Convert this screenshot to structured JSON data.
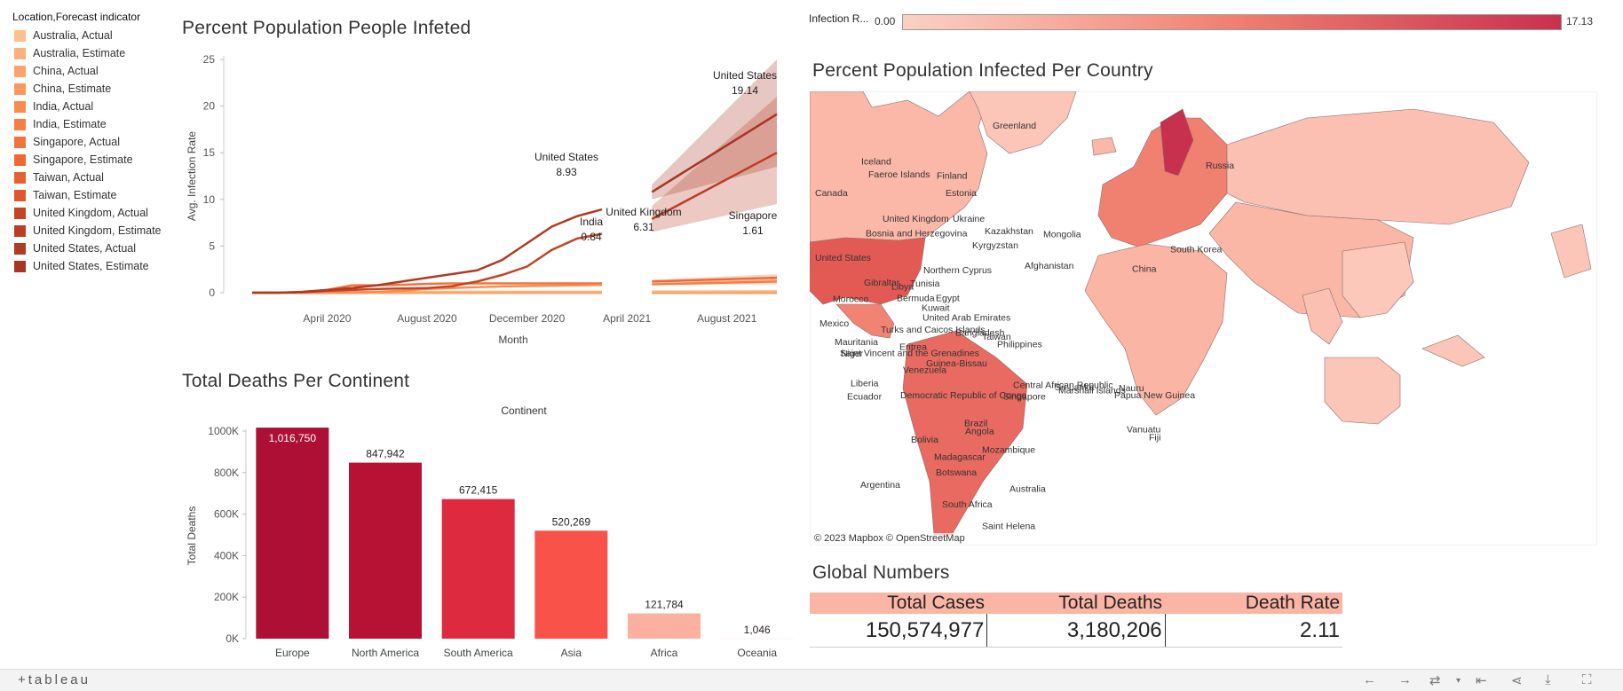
{
  "legend": {
    "title": "Location,Forecast indicator",
    "items": [
      {
        "label": "Australia, Actual",
        "color": "#fdbf8c"
      },
      {
        "label": "Australia, Estimate",
        "color": "#fcb07a"
      },
      {
        "label": "China, Actual",
        "color": "#fba36a"
      },
      {
        "label": "China, Estimate",
        "color": "#fa985c"
      },
      {
        "label": "India, Actual",
        "color": "#f98b4c"
      },
      {
        "label": "India, Estimate",
        "color": "#f57f43"
      },
      {
        "label": "Singapore, Actual",
        "color": "#f2733b"
      },
      {
        "label": "Singapore, Estimate",
        "color": "#ee6834"
      },
      {
        "label": "Taiwan, Actual",
        "color": "#e85f30"
      },
      {
        "label": "Taiwan, Estimate",
        "color": "#e1572d"
      },
      {
        "label": "United Kingdom, Actual",
        "color": "#c44425"
      },
      {
        "label": "United Kingdom, Estimate",
        "color": "#bb3e24"
      },
      {
        "label": "United States, Actual",
        "color": "#b13a23"
      },
      {
        "label": "United States, Estimate",
        "color": "#a83522"
      }
    ]
  },
  "line_chart": {
    "title": "Percent Population People Infeted",
    "ylabel": "Avg. Infection Rate",
    "xlabel": "Month"
  },
  "bar_chart": {
    "title": "Total Deaths Per Continent",
    "header": "Continent",
    "ylabel": "Total Deaths"
  },
  "map": {
    "title": "Percent Population Infected Per Country",
    "legend_label": "Infection R...",
    "legend_min": "0.00",
    "legend_max": "17.13",
    "attribution": "© 2023 Mapbox  © OpenStreetMap",
    "labels": [
      "Greenland",
      "Iceland",
      "Faeroe Islands",
      "Finland",
      "Estonia",
      "Russia",
      "Canada",
      "United Kingdom",
      "Ukraine",
      "Kazakhstan",
      "Mongolia",
      "Bosnia and Herzegovina",
      "Kyrgyzstan",
      "United States",
      "Gibraltar",
      "Tunisia",
      "Northern Cyprus",
      "Afghanistan",
      "China",
      "South Korea",
      "Bermuda",
      "Morocco",
      "Libya",
      "Egypt",
      "Kuwait",
      "United Arab Emirates",
      "Mexico",
      "Turks and Caicos Islands",
      "Bangladesh",
      "Taiwan",
      "Mauritania",
      "Niger",
      "Eritrea",
      "Philippines",
      "Saint Vincent and the Grenadines",
      "Guinea-Bissau",
      "Venezuela",
      "Liberia",
      "Central African Republic",
      "Sri Lanka",
      "Marshall Islands",
      "Nauru",
      "Ecuador",
      "Democratic Republic of Congo",
      "Singapore",
      "Papua New Guinea",
      "Brazil",
      "Angola",
      "Mozambique",
      "Vanuatu",
      "Fiji",
      "Bolivia",
      "Madagascar",
      "Botswana",
      "Australia",
      "Argentina",
      "South Africa",
      "Saint Helena"
    ]
  },
  "global": {
    "title": "Global Numbers",
    "headers": [
      "Total Cases",
      "Total Deaths",
      "Death Rate"
    ],
    "values": [
      "150,574,977",
      "3,180,206",
      "2.11"
    ]
  },
  "footer": {
    "brand": "+tableau"
  },
  "chart_data": [
    {
      "type": "line",
      "title": "Percent Population People Infeted",
      "xlabel": "Month",
      "ylabel": "Avg. Infection Rate",
      "ylim": [
        0,
        25
      ],
      "yticks": [
        0,
        5,
        10,
        15,
        20,
        25
      ],
      "xticks": [
        "April 2020",
        "August 2020",
        "December 2020",
        "April 2021",
        "August 2021"
      ],
      "x_actual": [
        "2020-01",
        "2020-02",
        "2020-03",
        "2020-04",
        "2020-05",
        "2020-06",
        "2020-07",
        "2020-08",
        "2020-09",
        "2020-10",
        "2020-11",
        "2020-12",
        "2021-01",
        "2021-02",
        "2021-03",
        "2021-04"
      ],
      "series_actual": [
        {
          "name": "United States, Actual",
          "color": "#b13a23",
          "values": [
            0.0,
            0.0,
            0.1,
            0.3,
            0.5,
            0.8,
            1.2,
            1.6,
            2.0,
            2.4,
            3.5,
            5.3,
            7.1,
            8.2,
            8.93,
            null
          ]
        },
        {
          "name": "United Kingdom, Actual",
          "color": "#c44425",
          "values": [
            0.0,
            0.0,
            0.05,
            0.2,
            0.3,
            0.4,
            0.45,
            0.5,
            0.7,
            1.2,
            1.9,
            2.8,
            4.6,
            5.8,
            6.31,
            null
          ]
        },
        {
          "name": "India, Actual",
          "color": "#f98b4c",
          "values": [
            0.0,
            0.0,
            0.0,
            0.01,
            0.05,
            0.1,
            0.2,
            0.4,
            0.5,
            0.6,
            0.68,
            0.72,
            0.76,
            0.8,
            0.84,
            null
          ]
        },
        {
          "name": "Singapore, Actual",
          "color": "#f2733b",
          "values": [
            0.0,
            0.0,
            0.02,
            0.3,
            0.8,
            0.8,
            0.85,
            0.95,
            1.0,
            1.0,
            1.0,
            1.0,
            1.0,
            1.0,
            1.0,
            null
          ]
        },
        {
          "name": "China, Actual",
          "color": "#fba36a",
          "values": [
            0.0,
            0.01,
            0.01,
            0.01,
            0.01,
            0.01,
            0.01,
            0.01,
            0.01,
            0.01,
            0.01,
            0.01,
            0.01,
            0.01,
            0.01,
            null
          ]
        },
        {
          "name": "Australia, Actual",
          "color": "#fdbf8c",
          "values": [
            0.0,
            0.0,
            0.02,
            0.03,
            0.03,
            0.03,
            0.05,
            0.1,
            0.1,
            0.11,
            0.11,
            0.11,
            0.11,
            0.11,
            0.11,
            null
          ]
        },
        {
          "name": "Taiwan, Actual",
          "color": "#e85f30",
          "values": [
            0.0,
            0.0,
            0.0,
            0.0,
            0.0,
            0.0,
            0.0,
            0.0,
            0.0,
            0.0,
            0.0,
            0.0,
            0.0,
            0.0,
            0.0,
            null
          ]
        }
      ],
      "x_estimate": [
        "2021-05",
        "2021-10"
      ],
      "series_estimate": [
        {
          "name": "United States, Estimate",
          "color": "#a83522",
          "values": [
            10.8,
            19.14
          ],
          "band": [
            [
              10.0,
              11.6
            ],
            [
              13.5,
              25.0
            ]
          ]
        },
        {
          "name": "United Kingdom, Estimate",
          "color": "#bb3e24",
          "values": [
            7.9,
            15.0
          ],
          "band": [
            [
              6.5,
              9.3
            ],
            [
              9.5,
              21.0
            ]
          ]
        },
        {
          "name": "Singapore, Estimate",
          "color": "#ee6834",
          "values": [
            1.2,
            1.61
          ],
          "band": [
            [
              1.0,
              1.4
            ],
            [
              1.2,
              2.0
            ]
          ]
        },
        {
          "name": "India, Estimate",
          "color": "#f57f43",
          "values": [
            0.9,
            1.2
          ],
          "band": [
            [
              0.8,
              1.0
            ],
            [
              0.9,
              1.5
            ]
          ]
        },
        {
          "name": "Australia, Estimate",
          "color": "#fcb07a",
          "values": [
            0.12,
            0.14
          ],
          "band": null
        },
        {
          "name": "China, Estimate",
          "color": "#fa985c",
          "values": [
            0.01,
            0.01
          ],
          "band": null
        },
        {
          "name": "Taiwan, Estimate",
          "color": "#e1572d",
          "values": [
            0.0,
            0.0
          ],
          "band": null
        }
      ],
      "annotations": [
        {
          "country": "United States",
          "value": "8.93"
        },
        {
          "country": "India",
          "value": "0.84"
        },
        {
          "country": "United Kingdom",
          "value": "6.31"
        },
        {
          "country": "United States",
          "value": "19.14"
        },
        {
          "country": "Singapore",
          "value": "1.61"
        }
      ]
    },
    {
      "type": "bar",
      "title": "Total Deaths Per Continent",
      "xlabel": "Continent",
      "ylabel": "Total Deaths",
      "ylim": [
        0,
        1000000
      ],
      "yticks": [
        0,
        200000,
        400000,
        600000,
        800000,
        1000000
      ],
      "ytick_labels": [
        "0K",
        "200K",
        "400K",
        "600K",
        "800K",
        "1000K"
      ],
      "categories": [
        "Europe",
        "North America",
        "South America",
        "Asia",
        "Africa",
        "Oceania"
      ],
      "values": [
        1016750,
        847942,
        672415,
        520269,
        121784,
        1046
      ],
      "value_labels": [
        "1,016,750",
        "847,942",
        "672,415",
        "520,269",
        "121,784",
        "1,046"
      ],
      "colors": [
        "#ae0f34",
        "#b71234",
        "#dd2a3f",
        "#f85249",
        "#fcb1a0",
        "#fde0d8"
      ]
    }
  ]
}
